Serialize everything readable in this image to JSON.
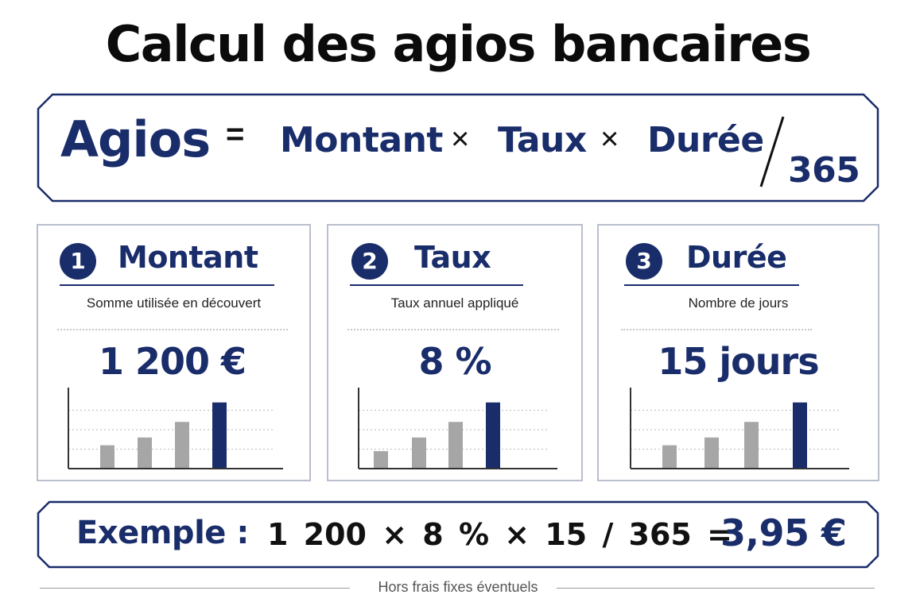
{
  "title": "Calcul des agios bancaires",
  "formula": {
    "result": "Agios",
    "equals": "=",
    "term1": "Montant",
    "times1": "×",
    "term2": "Taux",
    "times2": "×",
    "term3": "Durée",
    "divisor": "365"
  },
  "cards": [
    {
      "number": "1",
      "title": "Montant",
      "subtitle": "Somme utilisée en découvert",
      "value": "1 200 €",
      "chart_data": {
        "type": "bar",
        "values": [
          12,
          16,
          24,
          34
        ],
        "highlight_index": 3,
        "ylim": [
          0,
          40
        ],
        "grid": true
      }
    },
    {
      "number": "2",
      "title": "Taux",
      "subtitle": "Taux annuel appliqué",
      "value": "8 %",
      "chart_data": {
        "type": "bar",
        "values": [
          9,
          16,
          24,
          34
        ],
        "highlight_index": 3,
        "ylim": [
          0,
          40
        ],
        "grid": true
      }
    },
    {
      "number": "3",
      "title": "Durée",
      "subtitle": "Nombre de jours",
      "value": "15 jours",
      "chart_data": {
        "type": "bar",
        "values": [
          12,
          16,
          24,
          34
        ],
        "highlight_index": 3,
        "ylim": [
          0,
          40
        ],
        "grid": true
      }
    }
  ],
  "example": {
    "label": "Exemple :",
    "expression": "1 200 × 8 % × 15 / 365 =",
    "result": "3,95 €"
  },
  "footer": "Hors frais fixes éventuels",
  "colors": {
    "navy": "#1a2d6b",
    "bar_grey": "#a6a6a6",
    "text": "#111111"
  }
}
